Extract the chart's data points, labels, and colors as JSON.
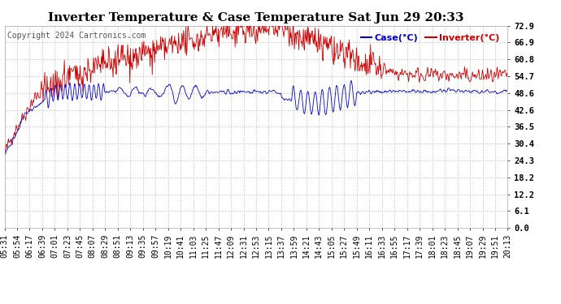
{
  "title": "Inverter Temperature & Case Temperature Sat Jun 29 20:33",
  "copyright": "Copyright 2024 Cartronics.com",
  "legend_case": "Case(°C)",
  "legend_inverter": "Inverter(°C)",
  "yticks": [
    0.0,
    6.1,
    12.2,
    18.2,
    24.3,
    30.4,
    36.5,
    42.6,
    48.6,
    54.7,
    60.8,
    66.9,
    72.9
  ],
  "ylim": [
    0.0,
    72.9
  ],
  "bg_color": "#ffffff",
  "plot_bg_color": "#ffffff",
  "grid_color": "#bbbbbb",
  "case_color": "#0000cc",
  "inverter_color": "#cc0000",
  "title_fontsize": 11,
  "copyright_fontsize": 7,
  "tick_fontsize": 7.5,
  "legend_fontsize": 8,
  "n_points": 900,
  "x_labels": [
    "05:31",
    "05:54",
    "06:17",
    "06:39",
    "07:01",
    "07:23",
    "07:45",
    "08:07",
    "08:29",
    "08:51",
    "09:13",
    "09:35",
    "09:57",
    "10:19",
    "10:41",
    "11:03",
    "11:25",
    "11:47",
    "12:09",
    "12:31",
    "12:53",
    "13:15",
    "13:37",
    "13:59",
    "14:21",
    "14:43",
    "15:05",
    "15:27",
    "15:49",
    "16:11",
    "16:33",
    "16:55",
    "17:17",
    "17:39",
    "18:01",
    "18:23",
    "18:45",
    "19:07",
    "19:29",
    "19:51",
    "20:13"
  ]
}
